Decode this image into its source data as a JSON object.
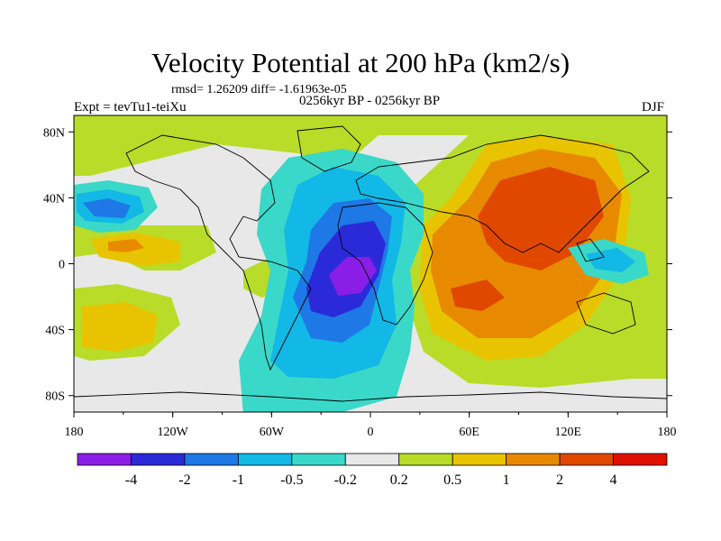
{
  "title": "Velocity Potential at 200 hPa (km2/s)",
  "stats": "rmsd= 1.26209 diff= -1.61963e-05",
  "left_label": "Expt = tevTu1-teiXu",
  "center_label": "0256kyr BP - 0256kyr BP",
  "right_label": "DJF",
  "map": {
    "lon_ticks": [
      "180",
      "120W",
      "60W",
      "0",
      "60E",
      "120E",
      "180"
    ],
    "lat_ticks": [
      "80N",
      "40N",
      "0",
      "40S",
      "80S"
    ]
  },
  "colorbar": {
    "colors": [
      "#8a1ee6",
      "#2a2ad8",
      "#1e78e6",
      "#12b8e6",
      "#3ad8c8",
      "#e8e8e8",
      "#b8dc28",
      "#e8c400",
      "#e88a00",
      "#e04800",
      "#e01000"
    ],
    "labels": [
      "-4",
      "-2",
      "-1",
      "-0.5",
      "-0.2",
      "0.2",
      "0.5",
      "1",
      "2",
      "4"
    ]
  }
}
